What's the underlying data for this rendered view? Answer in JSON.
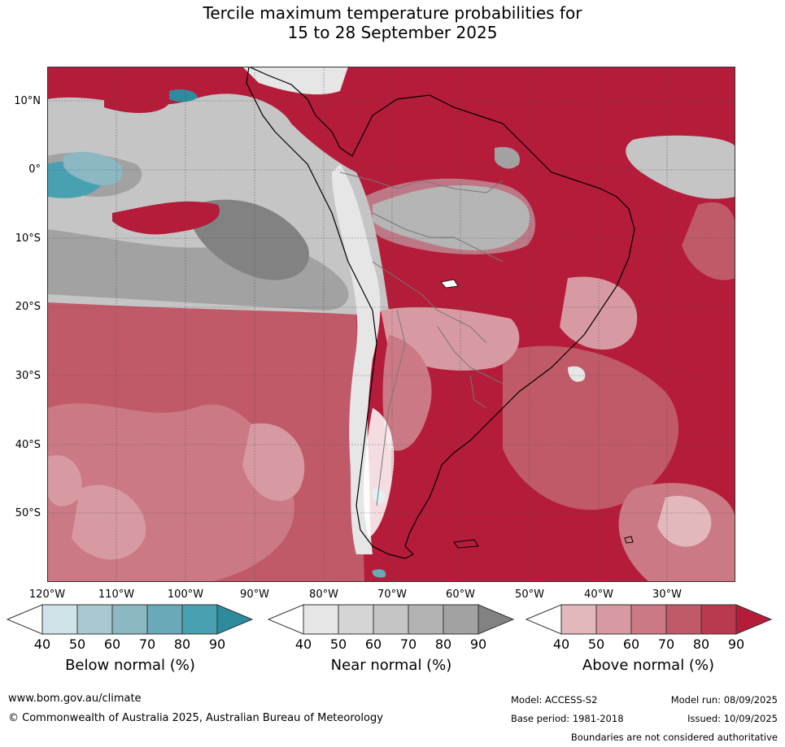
{
  "title": {
    "line1": "Tercile maximum temperature probabilities for",
    "line2": "15 to 28 September 2025"
  },
  "map": {
    "region": "South America",
    "latitude_labels": [
      "10°N",
      "0°",
      "10°S",
      "20°S",
      "30°S",
      "40°S",
      "50°S"
    ],
    "longitude_labels": [
      "120°W",
      "110°W",
      "100°W",
      "90°W",
      "80°W",
      "70°W",
      "60°W",
      "50°W",
      "40°W",
      "30°W"
    ]
  },
  "legend": {
    "below": {
      "title": "Below normal (%)",
      "ticks": [
        "40",
        "50",
        "60",
        "70",
        "80",
        "90"
      ],
      "colors": [
        "#ffffff",
        "#cfe3e9",
        "#a9c9d0",
        "#8bb8c2",
        "#69a9b8",
        "#48a1b2",
        "#2e8b9e"
      ]
    },
    "near": {
      "title": "Near normal (%)",
      "ticks": [
        "40",
        "50",
        "60",
        "70",
        "80",
        "90"
      ],
      "colors": [
        "#ffffff",
        "#e6e6e6",
        "#d5d5d5",
        "#c5c5c5",
        "#b3b3b3",
        "#a2a2a2",
        "#828282"
      ]
    },
    "above": {
      "title": "Above normal (%)",
      "ticks": [
        "40",
        "50",
        "60",
        "70",
        "80",
        "90"
      ],
      "colors": [
        "#ffffff",
        "#e3b8bd",
        "#d79aa2",
        "#cb7984",
        "#c05a68",
        "#b93a4e",
        "#b41c3a"
      ]
    }
  },
  "footer": {
    "website": "www.bom.gov.au/climate",
    "copyright": "© Commonwealth of Australia 2025, Australian Bureau of Meteorology",
    "model": "Model: ACCESS-S2",
    "base_period": "Base period: 1981-2018",
    "model_run": "Model run: 08/09/2025",
    "issued": "Issued: 10/09/2025",
    "disclaimer": "Boundaries are not considered authoritative"
  }
}
